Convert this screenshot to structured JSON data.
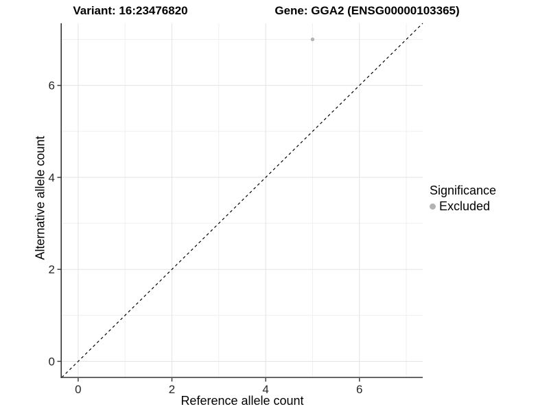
{
  "header": {
    "variant_title": "Variant: 16:23476820",
    "gene_title": "Gene: GGA2 (ENSG00000103365)"
  },
  "legend": {
    "title": "Significance",
    "items": [
      {
        "label": "Excluded",
        "color": "#b3b3b3"
      }
    ]
  },
  "chart_data": {
    "type": "scatter",
    "title": "Variant: 16:23476820 — Gene: GGA2 (ENSG00000103365)",
    "xlabel": "Reference allele count",
    "ylabel": "Alternative allele count",
    "xlim": [
      -0.35,
      7.35
    ],
    "ylim": [
      -0.35,
      7.35
    ],
    "x_ticks": [
      0,
      2,
      4,
      6
    ],
    "y_ticks": [
      0,
      2,
      4,
      6
    ],
    "x_minor_gridlines": [
      1,
      3,
      5,
      7
    ],
    "y_minor_gridlines": [
      1,
      3,
      5,
      7
    ],
    "grid": "on",
    "legend_position": "right",
    "series": [
      {
        "name": "Excluded",
        "color": "#b3b3b3",
        "points": [
          {
            "x": 5,
            "y": 7
          }
        ]
      }
    ],
    "reference_line": {
      "kind": "identity",
      "style": "dashed",
      "color": "#000000",
      "from": [
        -0.35,
        -0.35
      ],
      "to": [
        7.35,
        7.35
      ]
    }
  },
  "colors": {
    "axis_line": "#333333",
    "tick_label": "#262626",
    "grid_major": "#e3e3e3",
    "grid_minor": "#efefef",
    "background": "#ffffff"
  }
}
